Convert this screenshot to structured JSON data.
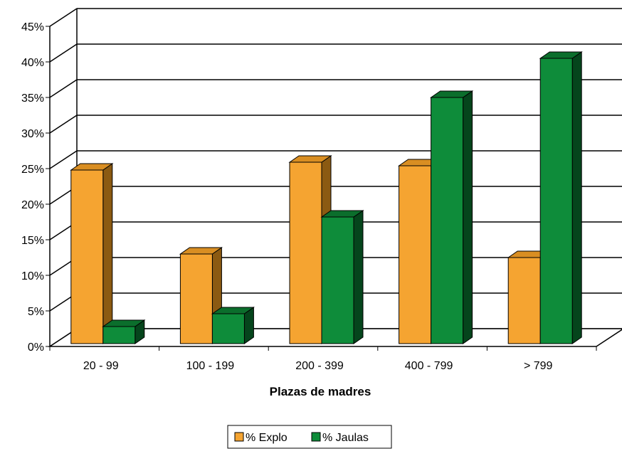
{
  "chart_data": {
    "type": "bar",
    "title": "",
    "xlabel": "Plazas de madres",
    "ylabel": "",
    "categories": [
      "20 - 99",
      "100 - 199",
      "200 - 399",
      "400 - 799",
      "> 799"
    ],
    "series": [
      {
        "name": "% Explo",
        "values": [
          24.4,
          12.6,
          25.5,
          25.0,
          12.1
        ],
        "color": "#F5A431",
        "side_color": "#8B5A12",
        "top_color": "#D98E22"
      },
      {
        "name": "% Jaulas",
        "values": [
          2.4,
          4.2,
          17.8,
          34.6,
          40.1
        ],
        "color": "#0E8C3A",
        "side_color": "#05451C",
        "top_color": "#0B6E2C"
      }
    ],
    "ylim": [
      0,
      45
    ],
    "yticks": [
      "0%",
      "5%",
      "10%",
      "15%",
      "20%",
      "25%",
      "30%",
      "35%",
      "40%",
      "45%"
    ],
    "grid": true,
    "legend_position": "bottom-center",
    "chart_style": "3d-clustered-column"
  }
}
